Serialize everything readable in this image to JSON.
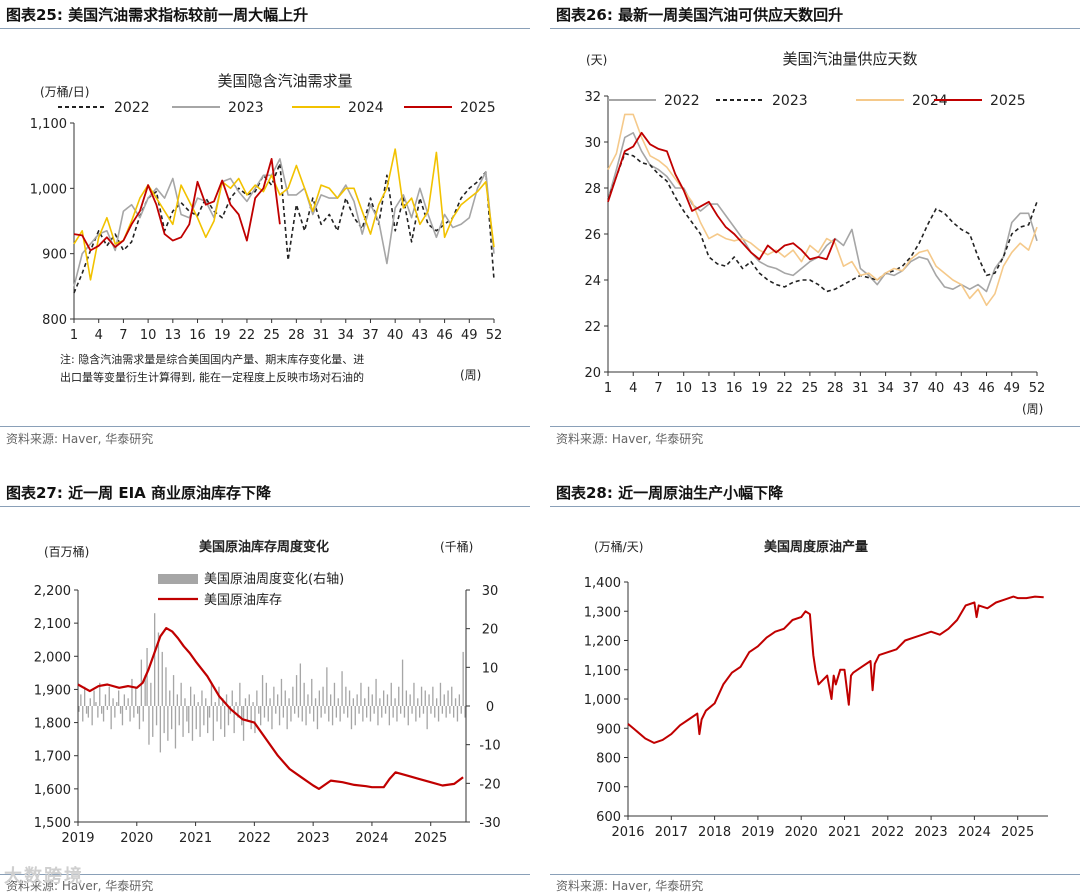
{
  "panels": [
    {
      "id": "p25",
      "header": "图表25:  美国汽油需求指标较前一周大幅上升",
      "source": "资料来源: Haver, 华泰研究"
    },
    {
      "id": "p26",
      "header": "图表26:  最新一周美国汽油可供应天数回升",
      "source": "资料来源: Haver, 华泰研究"
    },
    {
      "id": "p27",
      "header": "图表27:  近一周 EIA 商业原油库存下降",
      "source": "资料来源: Haver, 华泰研究"
    },
    {
      "id": "p28",
      "header": "图表28:  近一周原油生产小幅下降",
      "source": "资料来源: Haver, 华泰研究"
    }
  ],
  "watermark": "大数跨境",
  "chart_data": [
    {
      "type": "line",
      "title": "美国隐含汽油需求量",
      "ylabel": "(万桶/日)",
      "xlabel": "(周)",
      "note_line1": "注: 隐含汽油需求量是综合美国国内产量、期末库存变化量、进",
      "note_line2": "出口量等变量衍生计算得到, 能在一定程度上反映市场对石油的",
      "ylim": [
        800,
        1100
      ],
      "yticks": [
        800,
        900,
        1000,
        1100
      ],
      "ytick_labels": [
        "800",
        "900",
        "1,000",
        "1,100"
      ],
      "xticks": [
        1,
        4,
        7,
        10,
        13,
        16,
        19,
        22,
        25,
        28,
        31,
        34,
        37,
        40,
        43,
        46,
        49,
        52
      ],
      "xlim": [
        1,
        52
      ],
      "series": [
        {
          "name": "2022",
          "color": "#222222",
          "dash": true,
          "values": [
            840,
            870,
            905,
            935,
            912,
            930,
            905,
            918,
            958,
            985,
            995,
            935,
            965,
            978,
            965,
            958,
            985,
            965,
            955,
            985,
            1000,
            990,
            995,
            1020,
            1005,
            1038,
            890,
            975,
            935,
            985,
            945,
            960,
            935,
            985,
            955,
            938,
            985,
            945,
            1020,
            935,
            985,
            918,
            985,
            945,
            935,
            945,
            955,
            985,
            1000,
            1010,
            1025,
            860
          ]
        },
        {
          "name": "2023",
          "color": "#a6a6a6",
          "dash": false,
          "values": [
            850,
            900,
            915,
            930,
            935,
            905,
            965,
            975,
            955,
            985,
            1000,
            985,
            1015,
            960,
            955,
            985,
            980,
            955,
            1010,
            1015,
            995,
            980,
            1000,
            1020,
            1020,
            1045,
            990,
            990,
            1000,
            960,
            990,
            985,
            985,
            1005,
            980,
            930,
            975,
            950,
            885,
            970,
            990,
            955,
            1000,
            960,
            925,
            960,
            940,
            945,
            955,
            1000,
            1025,
            900
          ]
        },
        {
          "name": "2024",
          "color": "#f2c200",
          "dash": false,
          "values": [
            915,
            935,
            860,
            925,
            955,
            915,
            920,
            950,
            985,
            1005,
            985,
            965,
            945,
            1005,
            980,
            955,
            925,
            950,
            1010,
            1000,
            1015,
            990,
            1005,
            995,
            1020,
            990,
            1000,
            1035,
            1000,
            965,
            1005,
            1000,
            985,
            1000,
            1000,
            965,
            930,
            975,
            1000,
            1060,
            970,
            985,
            945,
            965,
            1055,
            925,
            955,
            975,
            985,
            995,
            1010,
            910
          ]
        },
        {
          "name": "2025",
          "color": "#c00000",
          "dash": false,
          "values": [
            930,
            928,
            905,
            912,
            925,
            910,
            920,
            945,
            965,
            1005,
            975,
            930,
            920,
            925,
            945,
            1010,
            975,
            980,
            1012,
            975,
            960,
            920,
            985,
            1000,
            1045,
            945
          ]
        }
      ]
    },
    {
      "type": "line",
      "title": "美国汽油量供应天数",
      "ylabel": "(天)",
      "xlabel": "(周)",
      "ylim": [
        20,
        32
      ],
      "yticks": [
        20,
        22,
        24,
        26,
        28,
        30,
        32
      ],
      "ytick_labels": [
        "20",
        "22",
        "24",
        "26",
        "28",
        "30",
        "32"
      ],
      "xticks": [
        1,
        4,
        7,
        10,
        13,
        16,
        19,
        22,
        25,
        28,
        31,
        34,
        37,
        40,
        43,
        46,
        49,
        52
      ],
      "xlim": [
        1,
        52
      ],
      "series": [
        {
          "name": "2022",
          "color": "#a6a6a6",
          "dash": false,
          "values": [
            27.5,
            28.8,
            30.2,
            30.4,
            29.6,
            29.0,
            28.8,
            28.5,
            28.0,
            28.0,
            27.3,
            27.0,
            27.3,
            27.3,
            26.8,
            26.3,
            25.8,
            25.2,
            24.8,
            24.6,
            24.5,
            24.3,
            24.2,
            24.5,
            24.8,
            25.0,
            25.5,
            25.8,
            25.5,
            26.2,
            24.5,
            24.2,
            23.8,
            24.3,
            24.2,
            24.4,
            24.8,
            25.0,
            24.9,
            24.2,
            23.7,
            23.6,
            23.8,
            23.6,
            23.8,
            23.5,
            24.5,
            25.0,
            26.5,
            26.9,
            26.9,
            25.7
          ]
        },
        {
          "name": "2023",
          "color": "#222222",
          "dash": true,
          "values": [
            27.5,
            28.5,
            29.5,
            29.4,
            29.1,
            29.0,
            28.6,
            28.3,
            27.6,
            27.0,
            26.5,
            26.0,
            25.0,
            24.7,
            24.6,
            25.0,
            24.5,
            24.8,
            24.3,
            24.0,
            23.8,
            23.7,
            23.9,
            24.0,
            24.0,
            23.8,
            23.5,
            23.6,
            23.8,
            24.0,
            24.2,
            24.1,
            24.0,
            24.3,
            24.4,
            24.6,
            25.0,
            25.6,
            26.4,
            27.1,
            26.9,
            26.5,
            26.2,
            26.0,
            25.0,
            24.2,
            24.3,
            25.0,
            26.0,
            26.3,
            26.4,
            27.4
          ]
        },
        {
          "name": "2024",
          "color": "#f5c98a",
          "dash": false,
          "values": [
            28.8,
            29.5,
            31.2,
            31.2,
            30.2,
            29.4,
            29.2,
            28.9,
            28.4,
            27.9,
            27.4,
            26.5,
            25.8,
            26.0,
            25.8,
            25.7,
            25.8,
            25.6,
            25.3,
            25.1,
            25.3,
            25.0,
            25.3,
            24.8,
            25.5,
            25.2,
            25.8,
            25.6,
            24.6,
            24.8,
            24.2,
            24.3,
            24.0,
            24.3,
            24.5,
            24.4,
            24.9,
            25.2,
            25.3,
            24.6,
            24.3,
            24.0,
            23.8,
            23.2,
            23.6,
            22.9,
            23.4,
            24.6,
            25.2,
            25.6,
            25.3,
            26.3
          ]
        },
        {
          "name": "2025",
          "color": "#c00000",
          "dash": false,
          "values": [
            27.4,
            28.5,
            29.6,
            29.8,
            30.4,
            29.9,
            29.7,
            29.6,
            28.6,
            27.9,
            27.0,
            27.2,
            27.4,
            26.8,
            26.3,
            26.0,
            25.6,
            25.2,
            24.9,
            25.5,
            25.2,
            25.5,
            25.6,
            25.3,
            24.9,
            25.0,
            24.9,
            25.8
          ]
        }
      ]
    },
    {
      "type": "bar+line",
      "title": "美国原油库存周度变化",
      "ylabel_left": "(百万桶)",
      "ylabel_right": "(千桶)",
      "ylim_left": [
        1500,
        2200
      ],
      "yticks_left": [
        1500,
        1600,
        1700,
        1800,
        1900,
        2000,
        2100,
        2200
      ],
      "ytick_labels_left": [
        "1,500",
        "1,600",
        "1,700",
        "1,800",
        "1,900",
        "2,000",
        "2,100",
        "2,200"
      ],
      "ylim_right": [
        -30,
        30
      ],
      "yticks_right": [
        -30,
        -20,
        -10,
        0,
        10,
        20,
        30
      ],
      "xlim": [
        2019,
        2025.6
      ],
      "xticks": [
        2019,
        2020,
        2021,
        2022,
        2023,
        2024,
        2025
      ],
      "bar_series": {
        "name": "美国原油周度变化(右轴)",
        "color": "#a6a6a6",
        "axis": "right"
      },
      "line_series": {
        "name": "美国原油库存",
        "color": "#c00000",
        "axis": "left",
        "x": [
          2019.0,
          2019.1,
          2019.2,
          2019.35,
          2019.5,
          2019.7,
          2019.85,
          2020.0,
          2020.1,
          2020.2,
          2020.3,
          2020.4,
          2020.5,
          2020.6,
          2020.7,
          2020.8,
          2020.9,
          2021.0,
          2021.2,
          2021.4,
          2021.6,
          2021.8,
          2022.0,
          2022.2,
          2022.4,
          2022.6,
          2022.8,
          2023.0,
          2023.1,
          2023.3,
          2023.5,
          2023.7,
          2023.9,
          2024.0,
          2024.2,
          2024.3,
          2024.4,
          2024.6,
          2024.8,
          2025.0,
          2025.2,
          2025.4,
          2025.55
        ],
        "values": [
          1915,
          1905,
          1895,
          1910,
          1915,
          1905,
          1910,
          1905,
          1920,
          1960,
          2010,
          2060,
          2085,
          2075,
          2055,
          2030,
          2010,
          1985,
          1940,
          1880,
          1840,
          1810,
          1800,
          1750,
          1700,
          1660,
          1635,
          1610,
          1600,
          1625,
          1620,
          1612,
          1608,
          1605,
          1605,
          1630,
          1650,
          1640,
          1630,
          1620,
          1610,
          1615,
          1635
        ]
      },
      "bars": [
        -1.5,
        3,
        -4,
        5,
        -2,
        -3,
        2,
        -5,
        4,
        1,
        -3,
        6,
        -2,
        -4,
        3,
        -1,
        5,
        -6,
        2,
        -3,
        1,
        4,
        -2,
        -5,
        3,
        -1,
        2,
        -4,
        7,
        -3,
        5,
        -2,
        -6,
        12,
        -4,
        8,
        15,
        -10,
        6,
        -8,
        24,
        -5,
        19,
        -12,
        14,
        -7,
        10,
        -9,
        4,
        -6,
        8,
        -11,
        3,
        -5,
        6,
        -8,
        2,
        -4,
        -7,
        5,
        -9,
        3,
        -6,
        1,
        -8,
        4,
        -5,
        2,
        -7,
        -3,
        6,
        -9,
        1,
        -4,
        5,
        -6,
        2,
        -8,
        3,
        -5,
        -2,
        4,
        -7,
        1,
        -3,
        6,
        -5,
        -9,
        2,
        -4,
        3,
        -6,
        1,
        -7,
        4,
        -2,
        -5,
        8,
        -3,
        6,
        -4,
        2,
        -6,
        5,
        -2,
        3,
        -5,
        7,
        -3,
        4,
        -6,
        2,
        -4,
        5,
        -2,
        8,
        -3,
        11,
        -4,
        6,
        -5,
        3,
        -2,
        7,
        -4,
        2,
        -6,
        4,
        -3,
        5,
        -2,
        10,
        -4,
        3,
        -5,
        6,
        -3,
        2,
        -4,
        9,
        -2,
        5,
        -3,
        4,
        -6,
        2,
        -5,
        3,
        -2,
        6,
        -4,
        2,
        -3,
        5,
        -4,
        3,
        -2,
        7,
        -5,
        2,
        -3,
        4,
        -2,
        3,
        -5,
        6,
        -3,
        2,
        -4,
        5,
        -2,
        12,
        -3,
        4,
        -5,
        3,
        -2,
        6,
        -4,
        2,
        -3,
        5,
        -2,
        4,
        -6,
        3,
        -2,
        5,
        -3,
        2,
        -4,
        6,
        -2,
        3,
        -3,
        4,
        -2,
        5,
        -3,
        2,
        -4,
        3,
        -2,
        14,
        -3
      ]
    },
    {
      "type": "line",
      "title": "美国周度原油产量",
      "ylabel": "(万桶/天)",
      "ylim": [
        600,
        1400
      ],
      "yticks": [
        600,
        700,
        800,
        900,
        1000,
        1100,
        1200,
        1300,
        1400
      ],
      "ytick_labels": [
        "600",
        "700",
        "800",
        "900",
        "1,000",
        "1,100",
        "1,200",
        "1,300",
        "1,400"
      ],
      "xlim": [
        2016,
        2025.7
      ],
      "xticks": [
        2016,
        2017,
        2018,
        2019,
        2020,
        2021,
        2022,
        2023,
        2024,
        2025
      ],
      "series": [
        {
          "name": "美国周度原油产量",
          "color": "#c00000",
          "dash": false,
          "x": [
            2016.0,
            2016.2,
            2016.4,
            2016.6,
            2016.8,
            2017.0,
            2017.2,
            2017.4,
            2017.6,
            2017.65,
            2017.7,
            2017.8,
            2018.0,
            2018.2,
            2018.4,
            2018.6,
            2018.8,
            2019.0,
            2019.2,
            2019.4,
            2019.6,
            2019.8,
            2020.0,
            2020.1,
            2020.2,
            2020.28,
            2020.33,
            2020.4,
            2020.6,
            2020.7,
            2020.75,
            2020.8,
            2020.9,
            2021.0,
            2021.1,
            2021.15,
            2021.2,
            2021.4,
            2021.6,
            2021.65,
            2021.7,
            2021.8,
            2022.0,
            2022.2,
            2022.4,
            2022.6,
            2022.8,
            2023.0,
            2023.2,
            2023.4,
            2023.6,
            2023.8,
            2024.0,
            2024.05,
            2024.1,
            2024.3,
            2024.5,
            2024.7,
            2024.9,
            2025.0,
            2025.2,
            2025.4,
            2025.6
          ],
          "values": [
            915,
            890,
            865,
            850,
            860,
            880,
            910,
            930,
            950,
            880,
            930,
            960,
            985,
            1050,
            1090,
            1110,
            1160,
            1180,
            1210,
            1230,
            1240,
            1270,
            1280,
            1300,
            1290,
            1150,
            1100,
            1050,
            1080,
            1000,
            1080,
            1050,
            1100,
            1100,
            980,
            1080,
            1090,
            1110,
            1130,
            1030,
            1120,
            1150,
            1160,
            1170,
            1200,
            1210,
            1220,
            1230,
            1220,
            1240,
            1270,
            1320,
            1330,
            1280,
            1320,
            1310,
            1330,
            1340,
            1350,
            1345,
            1345,
            1350,
            1348
          ]
        }
      ]
    }
  ]
}
